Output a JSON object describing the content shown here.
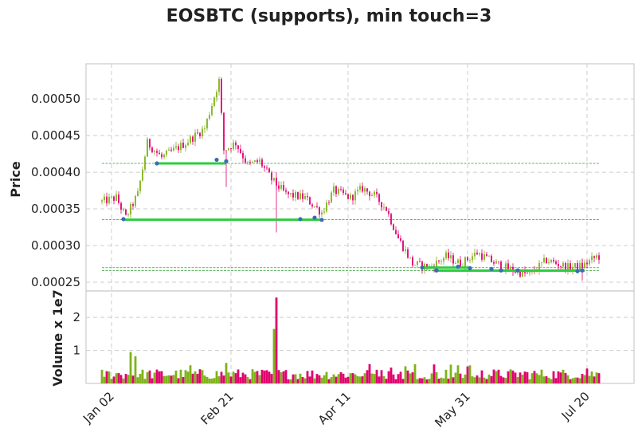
{
  "chart_data": {
    "type": "candlestick",
    "title": "EOSBTC (supports), min touch=3",
    "price_panel": {
      "ylabel": "Price",
      "ylim": [
        0.000238,
        0.000548
      ],
      "yticks": [
        0.00025,
        0.0003,
        0.00035,
        0.0004,
        0.00045,
        0.0005
      ],
      "ytick_labels": [
        "0.00025",
        "0.00030",
        "0.00035",
        "0.00040",
        "0.00045",
        "0.00050"
      ],
      "grid": true
    },
    "volume_panel": {
      "ylabel": "Volume x 1e7",
      "ylim": [
        0,
        2.8
      ],
      "yticks": [
        1,
        2
      ],
      "ytick_labels": [
        "1",
        "2"
      ]
    },
    "x_axis": {
      "start_date": "2018-12-29",
      "tick_labels": [
        "Jan 02",
        "Feb 21",
        "Apr 11",
        "May 31",
        "Jul 20"
      ],
      "tick_dates": [
        "2019-01-02",
        "2019-02-21",
        "2019-04-11",
        "2019-05-31",
        "2019-07-20"
      ]
    },
    "colors": {
      "up": "#7fb21b",
      "down": "#e0006e",
      "support": "#2ecc40",
      "touch": "#3a6bb5"
    },
    "ohlc_close_keypoints": [
      {
        "date": "2018-12-29",
        "close": 0.00036
      },
      {
        "date": "2019-01-04",
        "close": 0.000365
      },
      {
        "date": "2019-01-08",
        "close": 0.000338
      },
      {
        "date": "2019-01-13",
        "close": 0.00037
      },
      {
        "date": "2019-01-17",
        "close": 0.00044
      },
      {
        "date": "2019-01-23",
        "close": 0.00042
      },
      {
        "date": "2019-01-28",
        "close": 0.00043
      },
      {
        "date": "2019-02-02",
        "close": 0.00044
      },
      {
        "date": "2019-02-10",
        "close": 0.00046
      },
      {
        "date": "2019-02-16",
        "close": 0.000525
      },
      {
        "date": "2019-02-18",
        "close": 0.00043
      },
      {
        "date": "2019-02-23",
        "close": 0.00044
      },
      {
        "date": "2019-02-28",
        "close": 0.00041
      },
      {
        "date": "2019-03-05",
        "close": 0.000415
      },
      {
        "date": "2019-03-10",
        "close": 0.00039
      },
      {
        "date": "2019-03-16",
        "close": 0.00037
      },
      {
        "date": "2019-03-24",
        "close": 0.000365
      },
      {
        "date": "2019-03-31",
        "close": 0.000345
      },
      {
        "date": "2019-04-05",
        "close": 0.000375
      },
      {
        "date": "2019-04-12",
        "close": 0.000365
      },
      {
        "date": "2019-04-17",
        "close": 0.000378
      },
      {
        "date": "2019-04-22",
        "close": 0.000368
      },
      {
        "date": "2019-04-27",
        "close": 0.00035
      },
      {
        "date": "2019-05-02",
        "close": 0.00031
      },
      {
        "date": "2019-05-08",
        "close": 0.000275
      },
      {
        "date": "2019-05-15",
        "close": 0.00027
      },
      {
        "date": "2019-05-22",
        "close": 0.000285
      },
      {
        "date": "2019-05-28",
        "close": 0.000275
      },
      {
        "date": "2019-06-04",
        "close": 0.00029
      },
      {
        "date": "2019-06-12",
        "close": 0.000275
      },
      {
        "date": "2019-06-20",
        "close": 0.000265
      },
      {
        "date": "2019-06-26",
        "close": 0.00026
      },
      {
        "date": "2019-07-03",
        "close": 0.00028
      },
      {
        "date": "2019-07-12",
        "close": 0.00027
      },
      {
        "date": "2019-07-18",
        "close": 0.000272
      },
      {
        "date": "2019-07-24",
        "close": 0.000285
      }
    ],
    "support_levels": [
      {
        "price": 0.000412,
        "solid_from": "2019-01-21",
        "solid_to": "2019-02-19",
        "touches": [
          {
            "date": "2019-01-21",
            "price": 0.000412
          },
          {
            "date": "2019-02-15",
            "price": 0.000417
          },
          {
            "date": "2019-02-19",
            "price": 0.000415
          }
        ]
      },
      {
        "price": 0.0003352,
        "solid_from": "2019-01-07",
        "solid_to": "2019-03-31",
        "touches": [
          {
            "date": "2019-01-07",
            "price": 0.000336
          },
          {
            "date": "2019-03-22",
            "price": 0.000336
          },
          {
            "date": "2019-03-28",
            "price": 0.000338
          },
          {
            "date": "2019-03-31",
            "price": 0.000335
          }
        ]
      },
      {
        "price": 0.0002698,
        "solid_from": "2019-05-12",
        "solid_to": "2019-06-01",
        "touches": [
          {
            "date": "2019-05-12",
            "price": 0.00027
          },
          {
            "date": "2019-05-27",
            "price": 0.000271
          },
          {
            "date": "2019-06-01",
            "price": 0.000269
          }
        ]
      },
      {
        "price": 0.0002657,
        "solid_from": "2019-05-18",
        "solid_to": "2019-07-19",
        "touches": [
          {
            "date": "2019-05-18",
            "price": 0.000266
          },
          {
            "date": "2019-06-10",
            "price": 0.000268
          },
          {
            "date": "2019-06-14",
            "price": 0.000266
          },
          {
            "date": "2019-06-21",
            "price": 0.000266
          },
          {
            "date": "2019-07-16",
            "price": 0.000265
          },
          {
            "date": "2019-07-18",
            "price": 0.000266
          }
        ]
      }
    ],
    "volume_keypoints": [
      {
        "date": "2019-01-10",
        "volume": 0.95
      },
      {
        "date": "2019-01-12",
        "volume": 0.82
      },
      {
        "date": "2019-02-04",
        "volume": 0.55
      },
      {
        "date": "2019-02-19",
        "volume": 0.62
      },
      {
        "date": "2019-03-11",
        "volume": 1.65
      },
      {
        "date": "2019-03-12",
        "volume": 2.6
      },
      {
        "date": "2019-05-05",
        "volume": 0.52
      },
      {
        "date": "2019-07-20",
        "volume": 0.45
      }
    ]
  }
}
